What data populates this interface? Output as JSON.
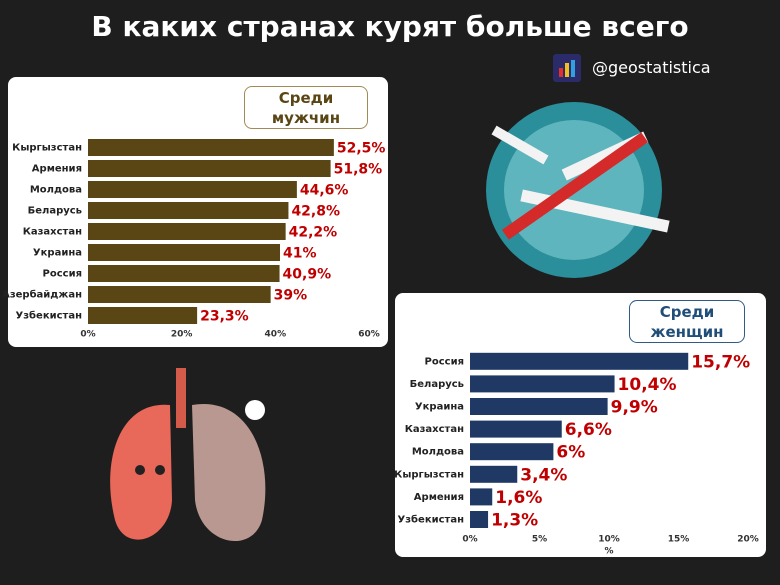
{
  "title": "В каких странах курят больше всего",
  "handle": "@geostatistica",
  "chart_data": [
    {
      "type": "barh",
      "title": "Среди мужчин",
      "categories": [
        "Кыргызстан",
        "Армения",
        "Молдова",
        "Беларусь",
        "Казахстан",
        "Украина",
        "Россия",
        "Азербайджан",
        "Узбекистан"
      ],
      "values": [
        52.5,
        51.8,
        44.6,
        42.8,
        42.2,
        41,
        40.9,
        39,
        23.3
      ],
      "value_labels": [
        "52,5%",
        "51,8%",
        "44,6%",
        "42,8%",
        "42,2%",
        "41%",
        "40,9%",
        "39%",
        "23,3%"
      ],
      "color": "#5a4515",
      "label_color": "#c00000",
      "xlim": [
        0,
        60
      ],
      "xticks": [
        {
          "value": 0,
          "label": "0%"
        },
        {
          "value": 20,
          "label": "20%"
        },
        {
          "value": 40,
          "label": "40%"
        },
        {
          "value": 60,
          "label": "60%"
        }
      ]
    },
    {
      "type": "barh",
      "title": "Среди женщин",
      "categories": [
        "Россия",
        "Беларусь",
        "Украина",
        "Казахстан",
        "Молдова",
        "Кыргызстан",
        "Армения",
        "Узбекистан"
      ],
      "values": [
        15.7,
        10.4,
        9.9,
        6.6,
        6,
        3.4,
        1.6,
        1.3
      ],
      "value_labels": [
        "15,7%",
        "10,4%",
        "9,9%",
        "6,6%",
        "6%",
        "3,4%",
        "1,6%",
        "1,3%"
      ],
      "color": "#1f3864",
      "label_color": "#c00000",
      "xlabel": "%",
      "xlim": [
        0,
        20
      ],
      "xticks": [
        {
          "value": 0,
          "label": "0%"
        },
        {
          "value": 5,
          "label": "5%"
        },
        {
          "value": 10,
          "label": "10%"
        },
        {
          "value": 15,
          "label": "15%"
        },
        {
          "value": 20,
          "label": "20%"
        }
      ]
    }
  ]
}
